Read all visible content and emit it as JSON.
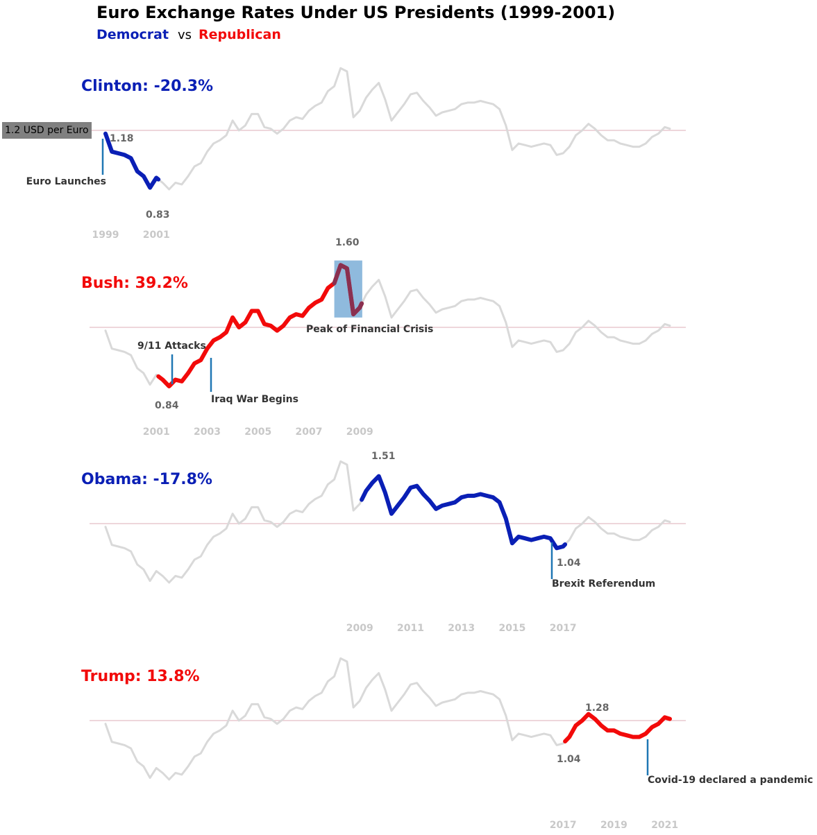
{
  "title": "Euro Exchange Rates Under US Presidents (1999-2001)",
  "subtitle": {
    "democrat": "Democrat",
    "vs": "vs",
    "republican": "Republican"
  },
  "colors": {
    "democrat": "#0a1fb5",
    "republican": "#f20a0a",
    "background_line": "#d9d9d9",
    "reference_line": "#e8c8cf",
    "event_line": "#1f77b4",
    "crisis_highlight": "#8fbadd",
    "crisis_line": "#8a3050"
  },
  "reference_label": "1.2 USD per Euro",
  "chart_data": {
    "type": "line",
    "series_name": "USD per Euro",
    "reference_value": 1.2,
    "ylim": [
      0.8,
      1.62
    ],
    "xlim": [
      1999.0,
      2021.2
    ],
    "x": [
      1999.0,
      1999.25,
      1999.5,
      1999.75,
      2000.0,
      2000.25,
      2000.5,
      2000.75,
      2001.0,
      2001.25,
      2001.5,
      2001.75,
      2002.0,
      2002.25,
      2002.5,
      2002.75,
      2003.0,
      2003.25,
      2003.5,
      2003.75,
      2004.0,
      2004.25,
      2004.5,
      2004.75,
      2005.0,
      2005.25,
      2005.5,
      2005.75,
      2006.0,
      2006.25,
      2006.5,
      2006.75,
      2007.0,
      2007.25,
      2007.5,
      2007.75,
      2008.0,
      2008.25,
      2008.5,
      2008.75,
      2009.0,
      2009.25,
      2009.5,
      2009.75,
      2010.0,
      2010.25,
      2010.5,
      2010.75,
      2011.0,
      2011.25,
      2011.5,
      2011.75,
      2012.0,
      2012.25,
      2012.5,
      2012.75,
      2013.0,
      2013.25,
      2013.5,
      2013.75,
      2014.0,
      2014.25,
      2014.5,
      2014.75,
      2015.0,
      2015.25,
      2015.5,
      2015.75,
      2016.0,
      2016.25,
      2016.5,
      2016.75,
      2017.0,
      2017.25,
      2017.5,
      2017.75,
      2018.0,
      2018.25,
      2018.5,
      2018.75,
      2019.0,
      2019.25,
      2019.5,
      2019.75,
      2020.0,
      2020.25,
      2020.5,
      2020.75,
      2021.0,
      2021.2
    ],
    "y": [
      1.18,
      1.07,
      1.06,
      1.05,
      1.03,
      0.95,
      0.92,
      0.85,
      0.91,
      0.88,
      0.84,
      0.88,
      0.87,
      0.92,
      0.98,
      1.0,
      1.07,
      1.12,
      1.14,
      1.17,
      1.26,
      1.2,
      1.23,
      1.3,
      1.3,
      1.22,
      1.21,
      1.18,
      1.21,
      1.26,
      1.28,
      1.27,
      1.32,
      1.35,
      1.37,
      1.44,
      1.47,
      1.58,
      1.56,
      1.28,
      1.32,
      1.4,
      1.45,
      1.49,
      1.39,
      1.26,
      1.31,
      1.36,
      1.42,
      1.43,
      1.38,
      1.34,
      1.29,
      1.31,
      1.32,
      1.33,
      1.36,
      1.37,
      1.37,
      1.38,
      1.37,
      1.36,
      1.33,
      1.23,
      1.08,
      1.12,
      1.11,
      1.1,
      1.11,
      1.12,
      1.11,
      1.05,
      1.06,
      1.1,
      1.17,
      1.2,
      1.24,
      1.21,
      1.17,
      1.14,
      1.14,
      1.12,
      1.11,
      1.1,
      1.1,
      1.12,
      1.16,
      1.18,
      1.22,
      1.21
    ],
    "presidents": [
      {
        "name": "Clinton",
        "party": "democrat",
        "label": "Clinton: -20.3%",
        "start": 1999.0,
        "end": 2001.08,
        "start_value": 1.18,
        "min_value": 0.83,
        "value_labels": [
          "1.18",
          "0.83"
        ],
        "ticks": [
          "1999",
          "2001"
        ],
        "tick_years": [
          1999,
          2001
        ],
        "events": [
          {
            "label": "Euro Launches",
            "year": 1999.0
          }
        ]
      },
      {
        "name": "Bush",
        "party": "republican",
        "label": "Bush: 39.2%",
        "start": 2001.08,
        "end": 2009.08,
        "min_value": 0.84,
        "max_value": 1.6,
        "value_labels": [
          "0.84",
          "1.60"
        ],
        "ticks": [
          "2001",
          "2003",
          "2005",
          "2007",
          "2009"
        ],
        "tick_years": [
          2001,
          2003,
          2005,
          2007,
          2009
        ],
        "events": [
          {
            "label": "9/11 Attacks",
            "year": 2001.7
          },
          {
            "label": "Iraq War Begins",
            "year": 2003.2
          }
        ],
        "highlight": {
          "label": "Peak of Financial Crisis",
          "start": 2008.0,
          "end": 2009.1
        }
      },
      {
        "name": "Obama",
        "party": "democrat",
        "label": "Obama: -17.8%",
        "start": 2009.08,
        "end": 2017.08,
        "max_value": 1.51,
        "end_value": 1.04,
        "value_labels": [
          "1.51",
          "1.04"
        ],
        "ticks": [
          "2009",
          "2011",
          "2013",
          "2015",
          "2017"
        ],
        "tick_years": [
          2009,
          2011,
          2013,
          2015,
          2017
        ],
        "events": [
          {
            "label": "Brexit Referendum",
            "year": 2016.5
          }
        ]
      },
      {
        "name": "Trump",
        "party": "republican",
        "label": "Trump: 13.8%",
        "start": 2017.08,
        "end": 2021.2,
        "start_value": 1.04,
        "max_value": 1.28,
        "value_labels": [
          "1.04",
          "1.28"
        ],
        "ticks": [
          "2017",
          "2019",
          "2021"
        ],
        "tick_years": [
          2017,
          2019,
          2021
        ],
        "events": [
          {
            "label": "Covid-19 declared a pandemic",
            "year": 2020.2
          }
        ]
      }
    ]
  }
}
